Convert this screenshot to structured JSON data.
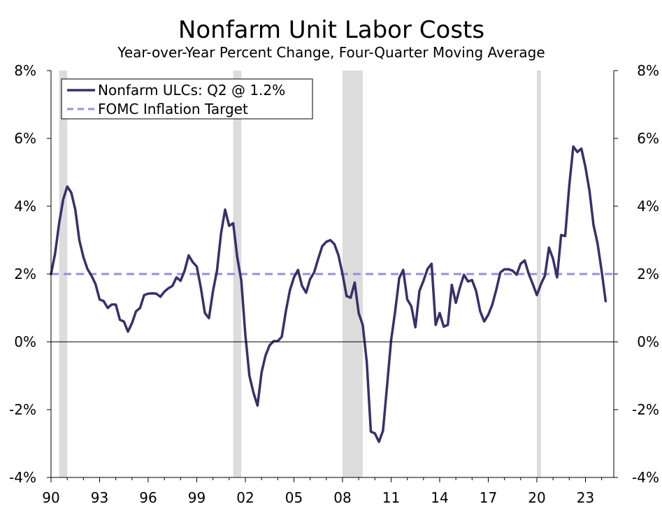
{
  "chart_data": {
    "type": "line",
    "title": "Nonfarm Unit Labor Costs",
    "subtitle": "Year-over-Year Percent Change, Four-Quarter Moving Average",
    "xlabel": "",
    "ylabel": "",
    "xlim": [
      1990.0,
      2024.75
    ],
    "ylim": [
      -4,
      8
    ],
    "yticks": [
      -4,
      -2,
      0,
      2,
      4,
      6,
      8
    ],
    "ytick_labels": [
      "-4%",
      "-2%",
      "0%",
      "2%",
      "4%",
      "6%",
      "8%"
    ],
    "xticks": [
      1990,
      1993,
      1996,
      1999,
      2002,
      2005,
      2008,
      2011,
      2014,
      2017,
      2020,
      2023
    ],
    "xtick_labels": [
      "90",
      "93",
      "96",
      "99",
      "02",
      "05",
      "08",
      "11",
      "14",
      "17",
      "20",
      "23"
    ],
    "legend_position": "top-left",
    "recessions": [
      {
        "start": 1990.5,
        "end": 1991.0
      },
      {
        "start": 2001.25,
        "end": 2001.75
      },
      {
        "start": 2008.0,
        "end": 2009.25
      },
      {
        "start": 2020.0,
        "end": 2020.25
      }
    ],
    "series": [
      {
        "name": "Nonfarm ULCs: Q2 @ 1.2%",
        "color": "#38306b",
        "style": "solid",
        "x": [
          1990.0,
          1990.25,
          1990.5,
          1990.75,
          1991.0,
          1991.25,
          1991.5,
          1991.75,
          1992.0,
          1992.25,
          1992.5,
          1992.75,
          1993.0,
          1993.25,
          1993.5,
          1993.75,
          1994.0,
          1994.25,
          1994.5,
          1994.75,
          1995.0,
          1995.25,
          1995.5,
          1995.75,
          1996.0,
          1996.25,
          1996.5,
          1996.75,
          1997.0,
          1997.25,
          1997.5,
          1997.75,
          1998.0,
          1998.25,
          1998.5,
          1998.75,
          1999.0,
          1999.25,
          1999.5,
          1999.75,
          2000.0,
          2000.25,
          2000.5,
          2000.75,
          2001.0,
          2001.25,
          2001.5,
          2001.75,
          2002.0,
          2002.25,
          2002.5,
          2002.75,
          2003.0,
          2003.25,
          2003.5,
          2003.75,
          2004.0,
          2004.25,
          2004.5,
          2004.75,
          2005.0,
          2005.25,
          2005.5,
          2005.75,
          2006.0,
          2006.25,
          2006.5,
          2006.75,
          2007.0,
          2007.25,
          2007.5,
          2007.75,
          2008.0,
          2008.25,
          2008.5,
          2008.75,
          2009.0,
          2009.25,
          2009.5,
          2009.75,
          2010.0,
          2010.25,
          2010.5,
          2010.75,
          2011.0,
          2011.25,
          2011.5,
          2011.75,
          2012.0,
          2012.25,
          2012.5,
          2012.75,
          2013.0,
          2013.25,
          2013.5,
          2013.75,
          2014.0,
          2014.25,
          2014.5,
          2014.75,
          2015.0,
          2015.25,
          2015.5,
          2015.75,
          2016.0,
          2016.25,
          2016.5,
          2016.75,
          2017.0,
          2017.25,
          2017.5,
          2017.75,
          2018.0,
          2018.25,
          2018.5,
          2018.75,
          2019.0,
          2019.25,
          2019.5,
          2019.75,
          2020.0,
          2020.25,
          2020.5,
          2020.75,
          2021.0,
          2021.25,
          2021.5,
          2021.75,
          2022.0,
          2022.25,
          2022.5,
          2022.75,
          2023.0,
          2023.25,
          2023.5,
          2023.75,
          2024.0,
          2024.25
        ],
        "values": [
          2.0,
          2.6,
          3.5,
          4.2,
          4.58,
          4.4,
          3.9,
          3.0,
          2.5,
          2.15,
          1.95,
          1.7,
          1.25,
          1.2,
          1.0,
          1.1,
          1.1,
          0.65,
          0.6,
          0.3,
          0.55,
          0.9,
          1.0,
          1.38,
          1.42,
          1.43,
          1.42,
          1.33,
          1.48,
          1.58,
          1.65,
          1.9,
          1.8,
          2.1,
          2.55,
          2.35,
          2.22,
          1.6,
          0.85,
          0.7,
          1.5,
          2.1,
          3.2,
          3.9,
          3.42,
          3.5,
          2.5,
          1.8,
          0.2,
          -1.0,
          -1.5,
          -1.88,
          -0.9,
          -0.4,
          -0.1,
          0.02,
          0.02,
          0.15,
          0.9,
          1.52,
          1.9,
          2.12,
          1.65,
          1.45,
          1.85,
          2.05,
          2.45,
          2.82,
          2.95,
          3.0,
          2.88,
          2.55,
          2.0,
          1.35,
          1.3,
          1.75,
          0.85,
          0.5,
          -0.6,
          -2.65,
          -2.7,
          -2.95,
          -2.62,
          -1.3,
          0.05,
          0.9,
          1.88,
          2.12,
          1.25,
          1.05,
          0.43,
          1.5,
          1.8,
          2.15,
          2.3,
          0.5,
          0.85,
          0.45,
          0.5,
          1.68,
          1.15,
          1.6,
          1.98,
          1.78,
          1.82,
          1.5,
          0.9,
          0.6,
          0.8,
          1.1,
          1.55,
          2.05,
          2.14,
          2.14,
          2.1,
          1.98,
          2.3,
          2.4,
          2.0,
          1.7,
          1.38,
          1.7,
          1.95,
          2.78,
          2.45,
          1.9,
          3.15,
          3.12,
          4.6,
          5.76,
          5.6,
          5.7,
          5.15,
          4.45,
          3.45,
          2.9,
          2.1,
          1.2
        ]
      },
      {
        "name": "FOMC Inflation Target",
        "color": "#9b8ed8",
        "style": "dashed",
        "x": [
          1990.0,
          2024.75
        ],
        "values": [
          2.0,
          2.0
        ]
      }
    ]
  }
}
